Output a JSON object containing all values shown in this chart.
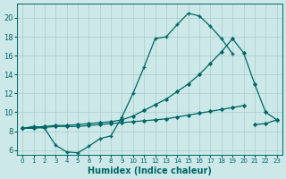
{
  "xlabel": "Humidex (Indice chaleur)",
  "background_color": "#cce8e8",
  "grid_color": "#aacccc",
  "line_color": "#006666",
  "xlim": [
    -0.5,
    23.5
  ],
  "ylim": [
    5.5,
    21.5
  ],
  "yticks": [
    6,
    8,
    10,
    12,
    14,
    16,
    18,
    20
  ],
  "xticks": [
    0,
    1,
    2,
    3,
    4,
    5,
    6,
    7,
    8,
    9,
    10,
    11,
    12,
    13,
    14,
    15,
    16,
    17,
    18,
    19,
    20,
    21,
    22,
    23
  ],
  "line1_x": [
    0,
    1,
    2,
    3,
    4,
    5,
    6,
    7,
    8,
    9,
    10,
    11,
    12,
    13,
    14,
    15,
    16,
    17,
    18,
    19,
    20,
    21,
    22,
    23
  ],
  "line1_y": [
    8.3,
    8.5,
    8.3,
    6.5,
    5.8,
    5.7,
    6.4,
    7.2,
    7.5,
    9.5,
    12.0,
    14.8,
    17.8,
    18.0,
    19.3,
    20.5,
    20.2,
    19.1,
    17.8,
    16.2,
    null,
    null,
    null,
    null
  ],
  "line2_x": [
    0,
    1,
    2,
    3,
    4,
    5,
    6,
    7,
    8,
    9,
    10,
    11,
    12,
    13,
    14,
    15,
    16,
    17,
    18,
    19,
    20,
    21,
    22,
    23
  ],
  "line2_y": [
    8.3,
    8.4,
    8.5,
    8.6,
    8.6,
    8.7,
    8.8,
    8.9,
    9.0,
    9.2,
    9.6,
    10.2,
    10.8,
    11.4,
    12.2,
    13.0,
    14.0,
    15.2,
    16.4,
    17.8,
    16.3,
    13.0,
    10.0,
    9.2
  ],
  "line3_x": [
    0,
    1,
    2,
    3,
    4,
    5,
    6,
    7,
    8,
    9,
    10,
    11,
    12,
    13,
    14,
    15,
    16,
    17,
    18,
    19,
    20,
    21,
    22,
    23
  ],
  "line3_y": [
    8.3,
    8.3,
    8.4,
    8.5,
    8.5,
    8.5,
    8.6,
    8.7,
    8.8,
    8.9,
    9.0,
    9.1,
    9.2,
    9.3,
    9.5,
    9.7,
    9.9,
    10.1,
    10.3,
    10.5,
    10.7,
    null,
    null,
    null
  ],
  "line4_x": [
    21,
    22,
    23
  ],
  "line4_y": [
    8.7,
    8.8,
    9.2
  ]
}
